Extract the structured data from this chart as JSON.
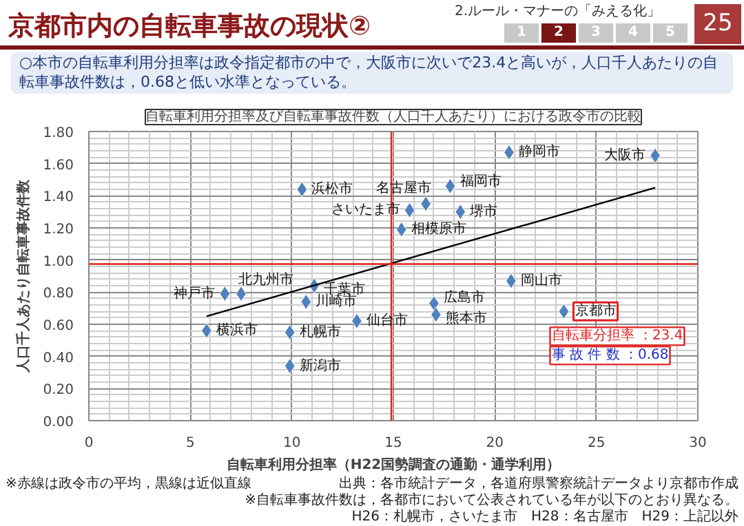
{
  "chart_data": {
    "type": "scatter",
    "title": "自転車利用分担率及び自転車事故件数（人口千人あたり）における政令市の比較",
    "subtitle": "○本市の自転車利用分担率は政令指定都市の中で，大阪市に次いで23.4と高いが，人口千人あたりの自転車事故件数は，0.68と低い水準となっている。",
    "xlabel": "自転車利用分担率（H22国勢調査の通勤・通学利用）",
    "ylabel": "人口千人あたり自転車事故件数",
    "xlim": [
      0,
      30
    ],
    "ylim": [
      0,
      1.8
    ],
    "xticks": [
      0,
      5,
      10,
      15,
      20,
      25,
      30
    ],
    "yticks": [
      {
        "value": 0,
        "label": "0.00"
      },
      {
        "value": 0.2,
        "label": "0.20"
      },
      {
        "value": 0.4,
        "label": "0.40"
      },
      {
        "value": 0.6,
        "label": "0.60"
      },
      {
        "value": 0.8,
        "label": "0.80"
      },
      {
        "value": 1.0,
        "label": "1.00"
      },
      {
        "value": 1.2,
        "label": "1.20"
      },
      {
        "value": 1.4,
        "label": "1.40"
      },
      {
        "value": 1.6,
        "label": "1.60"
      },
      {
        "value": 1.8,
        "label": "1.80"
      }
    ],
    "grid": true,
    "series": [
      {
        "marker": "diamond",
        "color": "#4f81bd",
        "x": [
          20.7,
          27.9,
          10.5,
          16.6,
          17.8,
          15.8,
          18.3,
          15.4,
          7.5,
          6.7,
          11.1,
          10.7,
          17.0,
          13.2,
          20.8,
          17.1,
          5.8,
          9.9,
          9.9,
          23.4
        ],
        "values": [
          1.67,
          1.65,
          1.44,
          1.35,
          1.46,
          1.31,
          1.3,
          1.19,
          0.79,
          0.79,
          0.84,
          0.74,
          0.73,
          0.62,
          0.87,
          0.66,
          0.56,
          0.55,
          0.34,
          0.68
        ]
      },
      {
        "type": "line",
        "color": "#000000",
        "x": [
          5.8,
          27.9
        ],
        "values": [
          0.65,
          1.45
        ]
      }
    ],
    "ref_lines": [
      {
        "axis": "x",
        "value": 14.9,
        "color": "#e02020"
      },
      {
        "axis": "y",
        "value": 0.975,
        "color": "#e02020"
      }
    ],
    "annotations": [
      "京都市内の自転車事故の現状②",
      "2.ルール・マナーの「みえる化」",
      "1",
      "2",
      "3",
      "4",
      "5",
      "25",
      "※赤線は政令市の平均，黒線は近似直線",
      "出典：各市統計データ，各道府県警察統計データより京都市作成",
      "※自転車事故件数は，各都市において公表されている年が以下のとおり異なる。",
      "H26：札幌市，さいたま市　H28：名古屋市　H29：上記以外",
      {
        "text": "静岡市",
        "x": 20.7,
        "y": 1.67
      },
      {
        "text": "大阪市",
        "x": 27.9,
        "y": 1.65
      },
      {
        "text": "浜松市",
        "x": 10.5,
        "y": 1.44
      },
      {
        "text": "名古屋市",
        "x": 16.6,
        "y": 1.35
      },
      {
        "text": "福岡市",
        "x": 17.8,
        "y": 1.46
      },
      {
        "text": "さいたま市",
        "x": 15.8,
        "y": 1.31
      },
      {
        "text": "堺市",
        "x": 18.3,
        "y": 1.3
      },
      {
        "text": "相模原市",
        "x": 15.4,
        "y": 1.19
      },
      {
        "text": "北九州市",
        "x": 7.5,
        "y": 0.79
      },
      {
        "text": "神戸市",
        "x": 6.7,
        "y": 0.79
      },
      {
        "text": "千葉市",
        "x": 11.1,
        "y": 0.84
      },
      {
        "text": "川崎市",
        "x": 10.7,
        "y": 0.74
      },
      {
        "text": "広島市",
        "x": 17.0,
        "y": 0.73
      },
      {
        "text": "仙台市",
        "x": 13.2,
        "y": 0.62
      },
      {
        "text": "岡山市",
        "x": 20.8,
        "y": 0.87
      },
      {
        "text": "熊本市",
        "x": 17.1,
        "y": 0.66
      },
      {
        "text": "横浜市",
        "x": 5.8,
        "y": 0.56
      },
      {
        "text": "札幌市",
        "x": 9.9,
        "y": 0.55
      },
      {
        "text": "新潟市",
        "x": 9.9,
        "y": 0.34
      },
      {
        "text": "京都市",
        "x": 23.4,
        "y": 0.68
      },
      {
        "text": "自転車分担率 ：23.4",
        "x": 23.4,
        "y": 0.68
      },
      {
        "text": "事 故 件 数 ：0.68",
        "x": 23.4,
        "y": 0.68
      }
    ]
  }
}
